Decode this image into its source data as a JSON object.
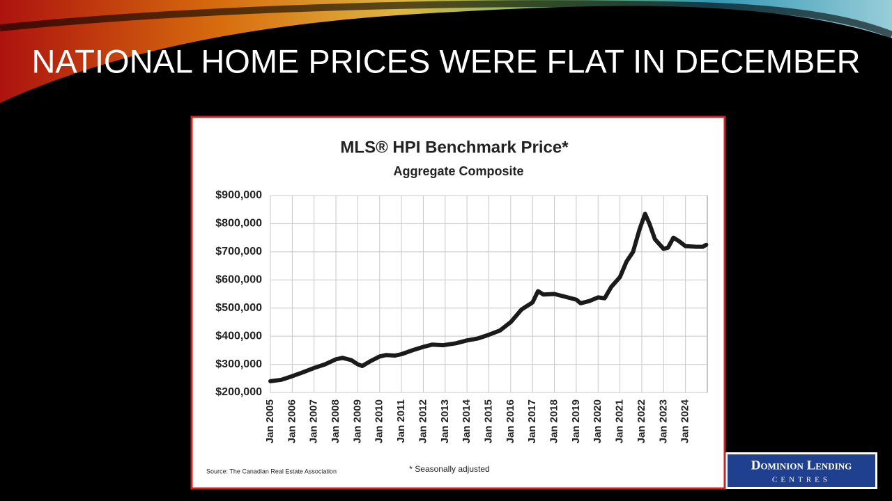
{
  "slide": {
    "title": "NATIONAL HOME PRICES WERE FLAT IN DECEMBER",
    "logo": {
      "line1": "Dominion Lending",
      "line2": "CENTRES"
    }
  },
  "chart_data": {
    "type": "line",
    "title": "MLS® HPI Benchmark Price*",
    "subtitle": "Aggregate Composite",
    "source": "Source: The Canadian Real Estate Association",
    "footnote": "* Seasonally adjusted",
    "x": [
      2005.0,
      2005.5,
      2006.0,
      2006.5,
      2007.0,
      2007.5,
      2008.0,
      2008.3,
      2008.7,
      2009.0,
      2009.2,
      2009.6,
      2010.0,
      2010.3,
      2010.7,
      2011.0,
      2011.5,
      2012.0,
      2012.4,
      2012.9,
      2013.5,
      2014.0,
      2014.5,
      2015.0,
      2015.5,
      2016.0,
      2016.5,
      2017.0,
      2017.25,
      2017.5,
      2018.0,
      2018.5,
      2019.0,
      2019.2,
      2019.6,
      2020.0,
      2020.3,
      2020.6,
      2021.0,
      2021.3,
      2021.6,
      2021.9,
      2022.15,
      2022.35,
      2022.6,
      2023.0,
      2023.2,
      2023.45,
      2023.7,
      2024.0,
      2024.5,
      2024.8,
      2024.95
    ],
    "values": [
      240000,
      245000,
      258000,
      272000,
      287000,
      300000,
      318000,
      323000,
      315000,
      300000,
      294000,
      312000,
      328000,
      333000,
      331000,
      336000,
      350000,
      362000,
      370000,
      368000,
      375000,
      385000,
      392000,
      405000,
      420000,
      450000,
      495000,
      520000,
      560000,
      548000,
      550000,
      540000,
      530000,
      517000,
      525000,
      538000,
      535000,
      575000,
      610000,
      665000,
      700000,
      780000,
      835000,
      800000,
      745000,
      710000,
      715000,
      750000,
      738000,
      720000,
      718000,
      718000,
      725000
    ],
    "color": "#1a1a1a",
    "xlim": [
      2005,
      2025
    ],
    "xticks": [
      {
        "value": 2005,
        "label": "Jan 2005"
      },
      {
        "value": 2006,
        "label": "Jan 2006"
      },
      {
        "value": 2007,
        "label": "Jan 2007"
      },
      {
        "value": 2008,
        "label": "Jan 2008"
      },
      {
        "value": 2009,
        "label": "Jan 2009"
      },
      {
        "value": 2010,
        "label": "Jan 2010"
      },
      {
        "value": 2011,
        "label": "Jan 2011"
      },
      {
        "value": 2012,
        "label": "Jan 2012"
      },
      {
        "value": 2013,
        "label": "Jan 2013"
      },
      {
        "value": 2014,
        "label": "Jan 2014"
      },
      {
        "value": 2015,
        "label": "Jan 2015"
      },
      {
        "value": 2016,
        "label": "Jan 2016"
      },
      {
        "value": 2017,
        "label": "Jan 2017"
      },
      {
        "value": 2018,
        "label": "Jan 2018"
      },
      {
        "value": 2019,
        "label": "Jan 2019"
      },
      {
        "value": 2020,
        "label": "Jan 2020"
      },
      {
        "value": 2021,
        "label": "Jan 2021"
      },
      {
        "value": 2022,
        "label": "Jan 2022"
      },
      {
        "value": 2023,
        "label": "Jan 2023"
      },
      {
        "value": 2024,
        "label": "Jan 2024"
      }
    ],
    "ylim": [
      200000,
      900000
    ],
    "yticks": [
      {
        "value": 200000,
        "label": "$200,000"
      },
      {
        "value": 300000,
        "label": "$300,000"
      },
      {
        "value": 400000,
        "label": "$400,000"
      },
      {
        "value": 500000,
        "label": "$500,000"
      },
      {
        "value": 600000,
        "label": "$600,000"
      },
      {
        "value": 700000,
        "label": "$700,000"
      },
      {
        "value": 800000,
        "label": "$800,000"
      },
      {
        "value": 900000,
        "label": "$900,000"
      }
    ],
    "grid": true
  }
}
